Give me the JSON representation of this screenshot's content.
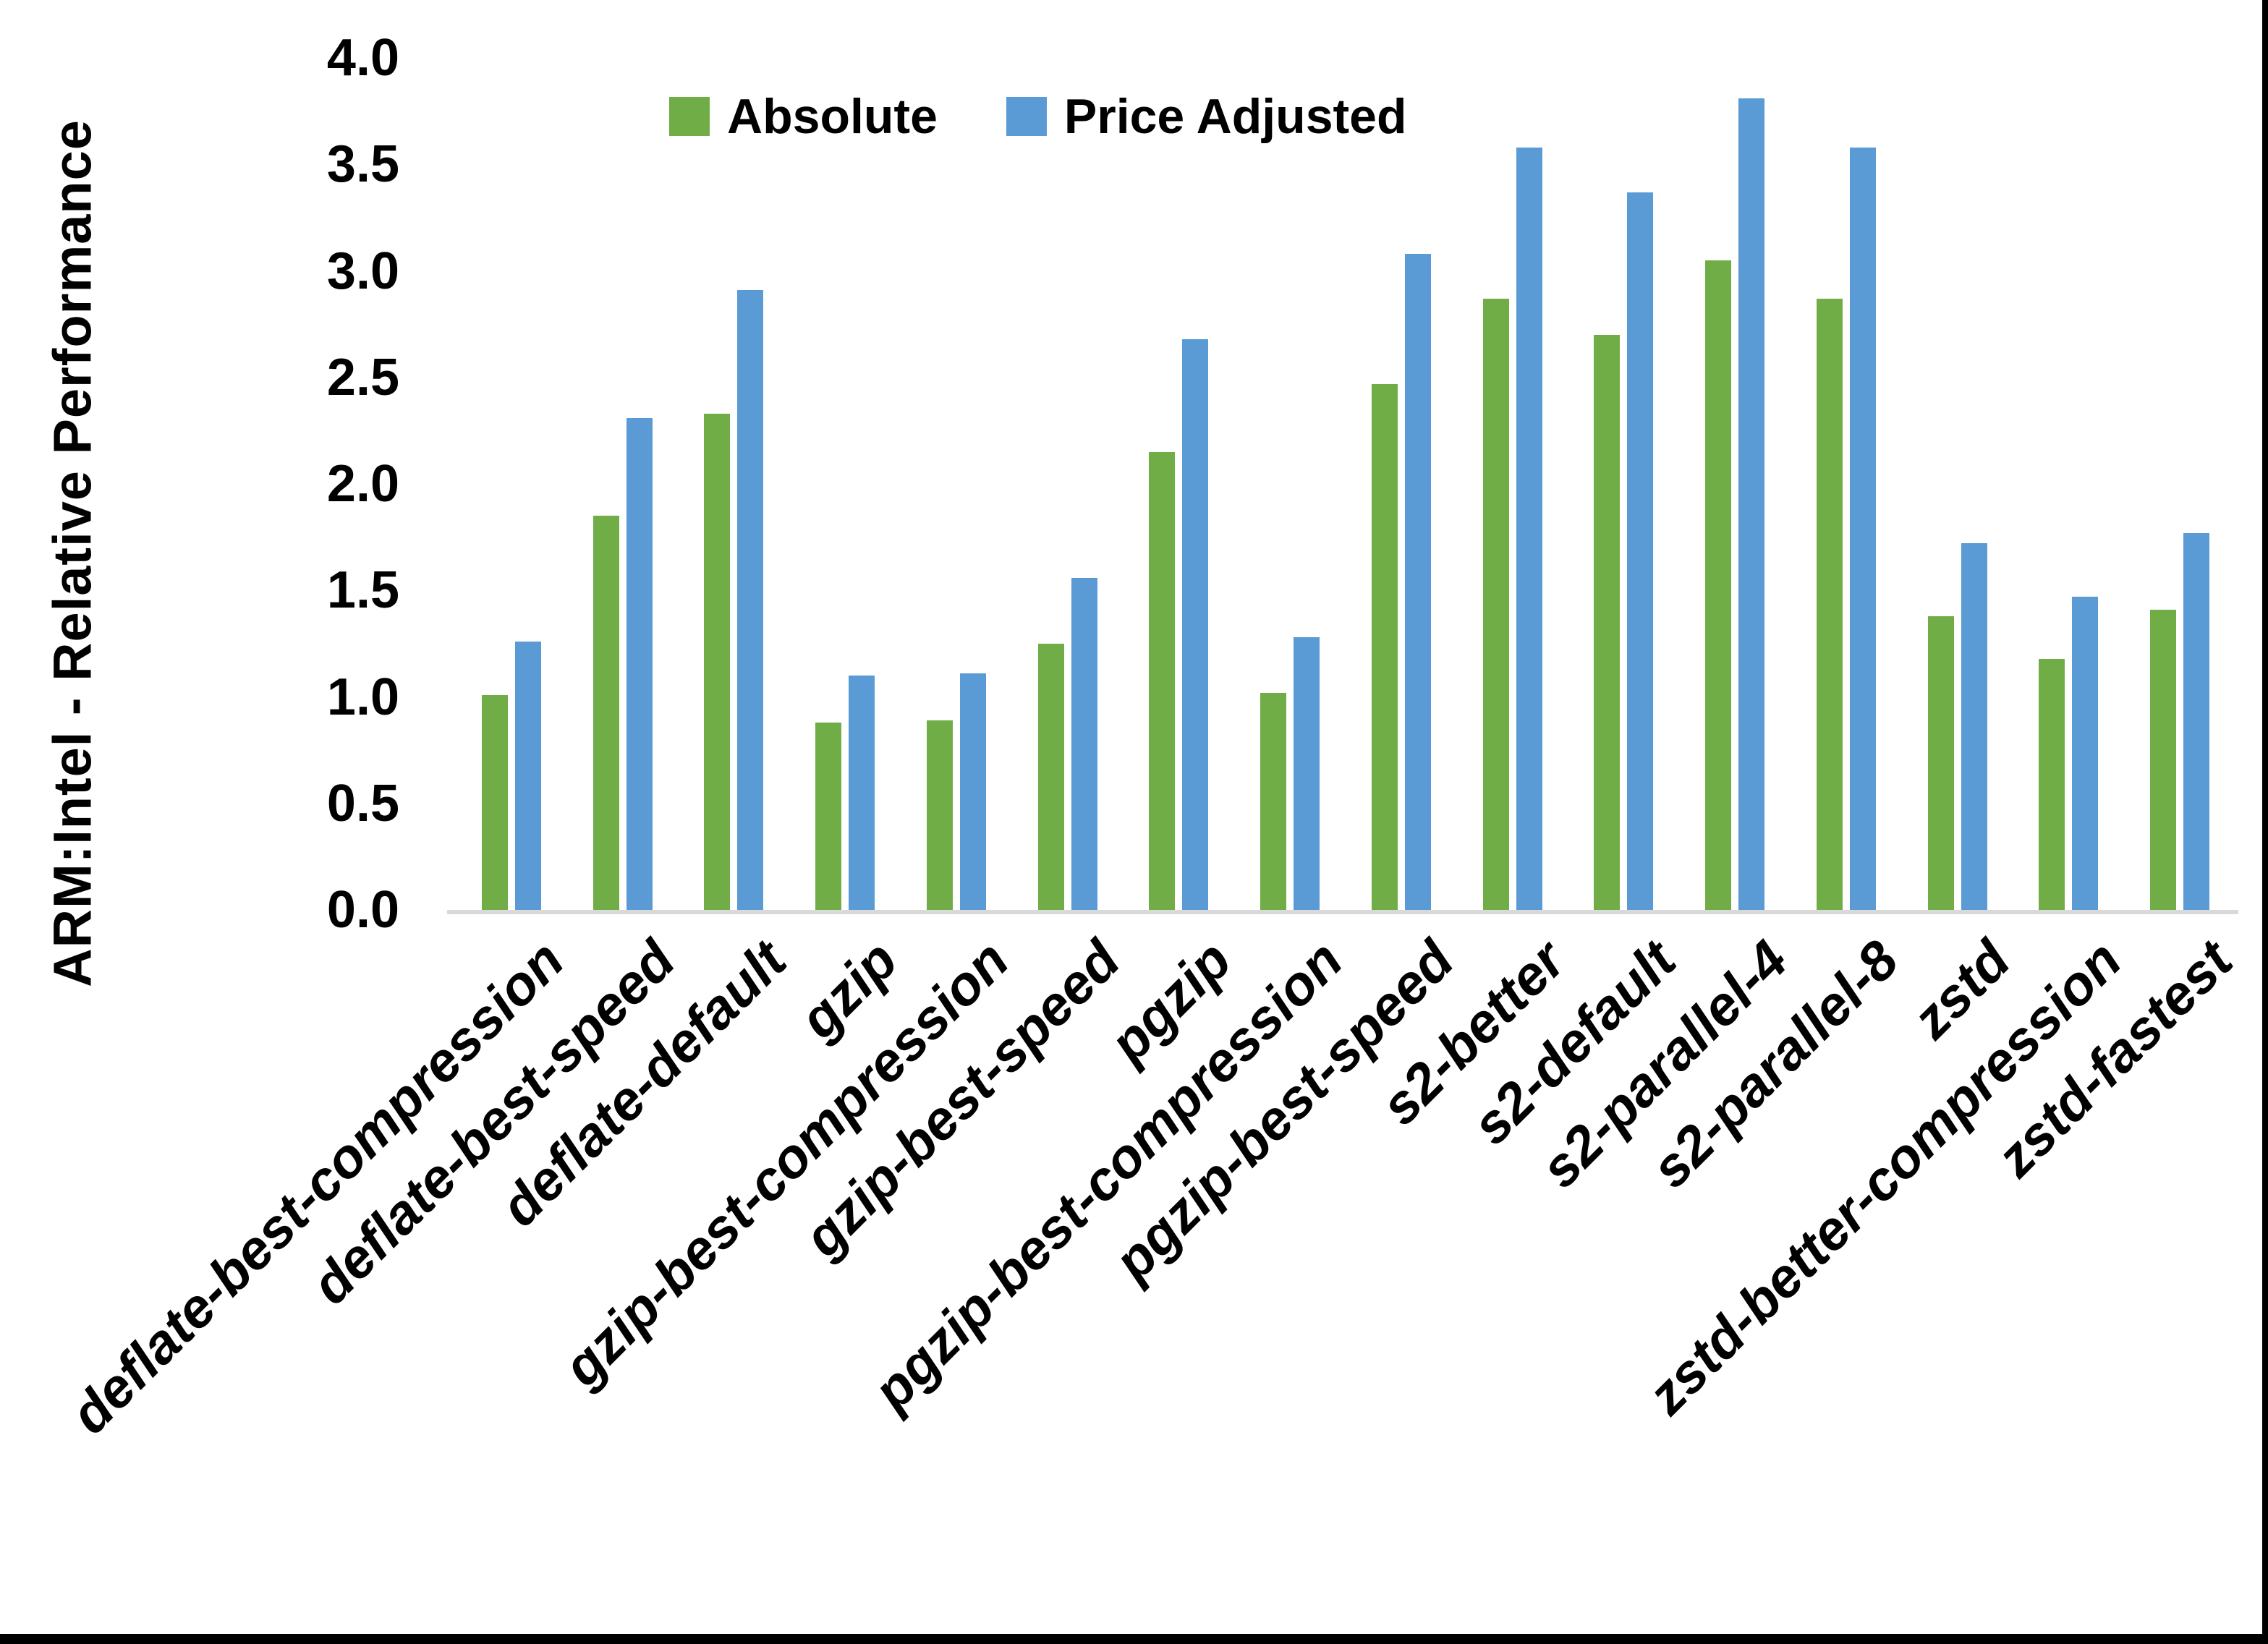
{
  "window": {
    "edge_color": "#000000",
    "background": "#FFFFFF"
  },
  "chart_data": {
    "type": "bar",
    "title": "",
    "ylabel": "ARM:Intel - Relative Performance",
    "xlabel": "",
    "ylim": [
      0.0,
      4.0
    ],
    "y_tick_step": 0.5,
    "y_ticks": [
      "4.0",
      "3.5",
      "3.0",
      "2.5",
      "2.0",
      "1.5",
      "1.0",
      "0.5",
      "0.0"
    ],
    "grid": false,
    "legend_position": "top-center-inside",
    "axis_line_color": "#D9D9D9",
    "text_color": "#000000",
    "categories": [
      "deflate-best-compression",
      "deflate-best-speed",
      "deflate-default",
      "gzip",
      "gzip-best-compression",
      "gzip-best-speed",
      "pgzip",
      "pgzip-best-compression",
      "pgzip-best-speed",
      "s2-better",
      "s2-default",
      "s2-parallel-4",
      "s2-parallel-8",
      "zstd",
      "zstd-better-compression",
      "zstd-fastest"
    ],
    "series": [
      {
        "name": "Absolute",
        "color": "#70AD47",
        "values": [
          1.01,
          1.85,
          2.33,
          0.88,
          0.89,
          1.25,
          2.15,
          1.02,
          2.47,
          2.87,
          2.7,
          3.05,
          2.87,
          1.38,
          1.18,
          1.41
        ]
      },
      {
        "name": "Price Adjusted",
        "color": "#5B9BD5",
        "values": [
          1.26,
          2.31,
          2.91,
          1.1,
          1.11,
          1.56,
          2.68,
          1.28,
          3.08,
          3.58,
          3.37,
          3.81,
          3.58,
          1.72,
          1.47,
          1.77
        ]
      }
    ]
  }
}
